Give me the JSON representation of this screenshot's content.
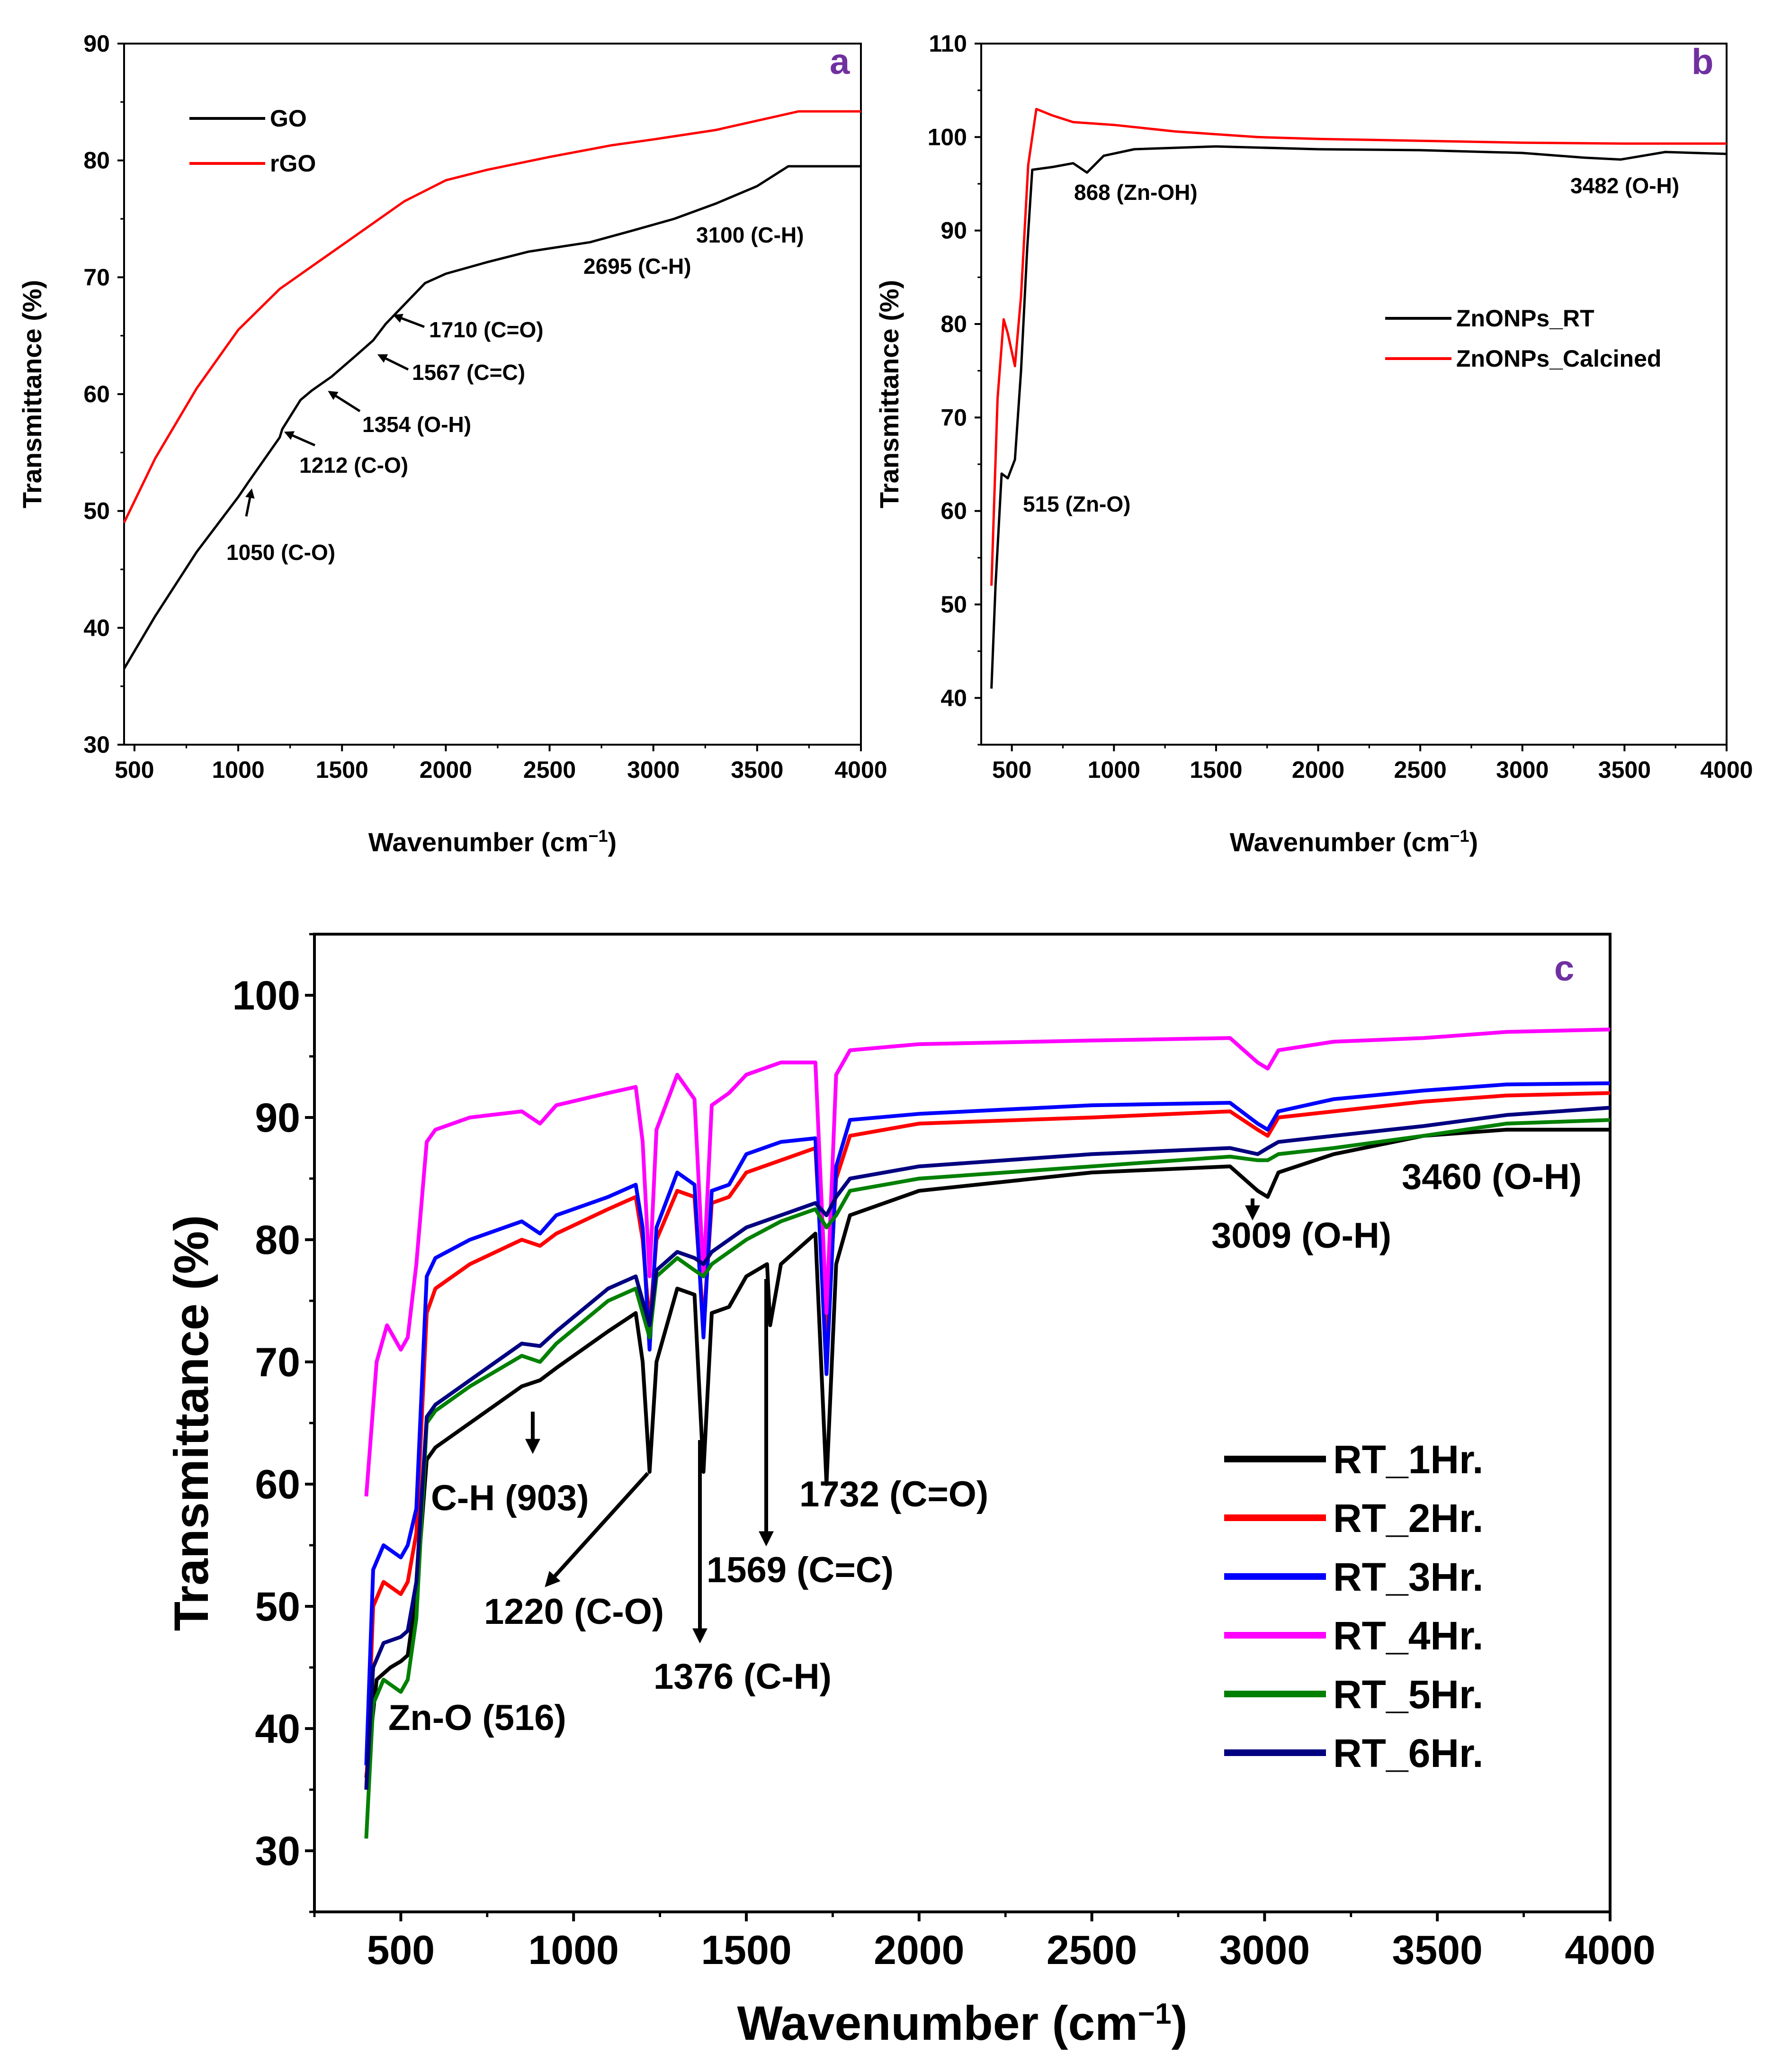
{
  "chart_data": [
    {
      "panel": "a",
      "type": "line",
      "xlabel": "Wavenumber (cm⁻¹)",
      "ylabel": "Transmittance (%)",
      "xlim": [
        450,
        4000
      ],
      "ylim": [
        30,
        90
      ],
      "xticks": [
        500,
        1000,
        1500,
        2000,
        2500,
        3000,
        3500,
        4000
      ],
      "yticks": [
        30,
        40,
        50,
        60,
        70,
        80,
        90
      ],
      "legend": "top-left",
      "series": [
        {
          "name": "GO",
          "color": "#000000",
          "x": [
            450,
            600,
            800,
            1000,
            1050,
            1200,
            1212,
            1300,
            1354,
            1450,
            1567,
            1650,
            1710,
            1900,
            2000,
            2200,
            2400,
            2695,
            2900,
            3100,
            3300,
            3500,
            3650,
            3700,
            4000
          ],
          "y": [
            36.5,
            41,
            46.5,
            51.2,
            52.5,
            56.3,
            57,
            59.5,
            60.3,
            61.5,
            63.3,
            64.6,
            66,
            69.5,
            70.3,
            71.3,
            72.2,
            73,
            74,
            75,
            76.3,
            77.8,
            79.5,
            79.5,
            79.5
          ]
        },
        {
          "name": "rGO",
          "color": "#ff0000",
          "x": [
            450,
            600,
            800,
            1000,
            1200,
            1400,
            1600,
            1800,
            2000,
            2200,
            2500,
            2800,
            3000,
            3300,
            3600,
            3700,
            4000
          ],
          "y": [
            49,
            54.5,
            60.5,
            65.5,
            69,
            71.5,
            74,
            76.5,
            78.3,
            79.2,
            80.3,
            81.3,
            81.8,
            82.6,
            83.8,
            84.2,
            84.2
          ]
        }
      ],
      "annotations": [
        {
          "text": "1050 (C-O)",
          "x": 1050,
          "y": 52.3
        },
        {
          "text": "1212 (C-O)",
          "x": 1212,
          "y": 56.8
        },
        {
          "text": "1354 (O-H)",
          "x": 1354,
          "y": 60.2
        },
        {
          "text": "1567 (C=C)",
          "x": 1567,
          "y": 63.2
        },
        {
          "text": "1710 (C=O)",
          "x": 1710,
          "y": 65.8
        },
        {
          "text": "2695 (C-H)",
          "x": 2695,
          "y": 73
        },
        {
          "text": "3100 (C-H)",
          "x": 3100,
          "y": 75
        }
      ],
      "panel_label": "a"
    },
    {
      "panel": "b",
      "type": "line",
      "xlabel": "Wavenumber (cm⁻¹)",
      "ylabel": "Transmittance (%)",
      "xlim": [
        350,
        4000
      ],
      "ylim": [
        35,
        110
      ],
      "xticks": [
        500,
        1000,
        1500,
        2000,
        2500,
        3000,
        3500,
        4000
      ],
      "yticks": [
        40,
        50,
        60,
        70,
        80,
        90,
        100,
        110
      ],
      "legend": "middle-right",
      "series": [
        {
          "name": "ZnONPs_RT",
          "color": "#000000",
          "x": [
            400,
            420,
            450,
            480,
            515,
            545,
            575,
            600,
            700,
            800,
            868,
            950,
            1100,
            1500,
            2000,
            2500,
            3000,
            3300,
            3482,
            3700,
            4000
          ],
          "y": [
            41,
            52,
            64,
            63.5,
            65.5,
            75,
            88,
            96.5,
            96.8,
            97.2,
            96.2,
            98,
            98.7,
            99,
            98.7,
            98.6,
            98.3,
            97.8,
            97.6,
            98.4,
            98.2
          ]
        },
        {
          "name": "ZnONPs_Calcined",
          "color": "#ff0000",
          "x": [
            400,
            430,
            460,
            480,
            515,
            545,
            580,
            620,
            700,
            800,
            1000,
            1300,
            1700,
            2000,
            2500,
            3000,
            3500,
            4000
          ],
          "y": [
            52,
            72,
            80.5,
            79,
            75.5,
            83,
            97,
            103,
            102.3,
            101.6,
            101.3,
            100.6,
            100,
            99.8,
            99.6,
            99.4,
            99.3,
            99.3
          ]
        }
      ],
      "annotations": [
        {
          "text": "515 (Zn-O)",
          "x": 515,
          "y": 64
        },
        {
          "text": "868 (Zn-OH)",
          "x": 868,
          "y": 96
        },
        {
          "text": "3482 (O-H)",
          "x": 3482,
          "y": 97.5
        }
      ],
      "panel_label": "b"
    },
    {
      "panel": "c",
      "type": "line",
      "xlabel": "Wavenumber (cm⁻¹)",
      "ylabel": "Transmittance (%)",
      "xlim": [
        250,
        4000
      ],
      "ylim": [
        25,
        105
      ],
      "xticks": [
        500,
        1000,
        1500,
        2000,
        2500,
        3000,
        3500,
        4000
      ],
      "yticks": [
        30,
        40,
        50,
        60,
        70,
        80,
        90,
        100
      ],
      "legend": "bottom-right",
      "series": [
        {
          "name": "RT_1Hr.",
          "color": "#000000",
          "x": [
            400,
            430,
            470,
            500,
            520,
            545,
            575,
            600,
            700,
            850,
            903,
            950,
            1100,
            1180,
            1200,
            1220,
            1240,
            1300,
            1350,
            1376,
            1400,
            1450,
            1500,
            1560,
            1569,
            1600,
            1700,
            1732,
            1760,
            1800,
            2000,
            2500,
            2900,
            2980,
            3009,
            3040,
            3200,
            3460,
            3700,
            4000
          ],
          "y": [
            36,
            44,
            45,
            45.5,
            46,
            51,
            62,
            63,
            65,
            68,
            68.5,
            69.5,
            72.5,
            74,
            70,
            61,
            70,
            76,
            75.5,
            61,
            74,
            74.5,
            77,
            78,
            73,
            78,
            80.5,
            60,
            78,
            82,
            84,
            85.5,
            86,
            84,
            83.5,
            85.5,
            87,
            88.5,
            89,
            89
          ]
        },
        {
          "name": "RT_2Hr.",
          "color": "#ff0000",
          "x": [
            400,
            420,
            450,
            500,
            520,
            545,
            575,
            600,
            700,
            850,
            903,
            950,
            1100,
            1180,
            1200,
            1220,
            1240,
            1300,
            1350,
            1376,
            1400,
            1450,
            1500,
            1600,
            1700,
            1732,
            1760,
            1800,
            2000,
            2500,
            2900,
            2980,
            3009,
            3040,
            3200,
            3460,
            3700,
            4000
          ],
          "y": [
            35,
            50,
            52,
            51,
            52,
            56,
            74,
            76,
            78,
            80,
            79.5,
            80.5,
            82.5,
            83.5,
            80,
            73,
            80,
            84,
            83.5,
            73,
            83,
            83.5,
            85.5,
            86.5,
            87.5,
            71,
            85,
            88.5,
            89.5,
            90,
            90.5,
            89,
            88.5,
            90,
            90.5,
            91.3,
            91.8,
            92
          ]
        },
        {
          "name": "RT_3Hr.",
          "color": "#0000ff",
          "x": [
            400,
            420,
            450,
            500,
            520,
            545,
            575,
            600,
            700,
            850,
            903,
            950,
            1100,
            1180,
            1200,
            1220,
            1240,
            1300,
            1350,
            1376,
            1400,
            1450,
            1500,
            1600,
            1700,
            1732,
            1760,
            1800,
            2000,
            2500,
            2900,
            2980,
            3009,
            3040,
            3200,
            3460,
            3700,
            4000
          ],
          "y": [
            37,
            53,
            55,
            54,
            55,
            58,
            77,
            78.5,
            80,
            81.5,
            80.5,
            82,
            83.5,
            84.5,
            81,
            71,
            81,
            85.5,
            84.5,
            72,
            84,
            84.5,
            87,
            88,
            88.3,
            69,
            86,
            89.8,
            90.3,
            91,
            91.2,
            89.5,
            89,
            90.5,
            91.5,
            92.2,
            92.7,
            92.8
          ]
        },
        {
          "name": "RT_4Hr.",
          "color": "#ff00ff",
          "x": [
            400,
            430,
            460,
            500,
            520,
            545,
            575,
            600,
            700,
            850,
            903,
            950,
            1100,
            1180,
            1200,
            1220,
            1240,
            1300,
            1350,
            1376,
            1400,
            1450,
            1500,
            1600,
            1700,
            1732,
            1760,
            1800,
            2000,
            2500,
            2900,
            2980,
            3009,
            3040,
            3200,
            3460,
            3700,
            4000
          ],
          "y": [
            59,
            70,
            73,
            71,
            72,
            78,
            88,
            89,
            90,
            90.5,
            89.5,
            91,
            92,
            92.5,
            88,
            77,
            89,
            93.5,
            91.5,
            77,
            91,
            92,
            93.5,
            94.5,
            94.5,
            74,
            93.5,
            95.5,
            96,
            96.3,
            96.5,
            94.5,
            94,
            95.5,
            96.2,
            96.5,
            97,
            97.2
          ]
        },
        {
          "name": "RT_5Hr.",
          "color": "#008000",
          "x": [
            400,
            420,
            450,
            500,
            520,
            545,
            575,
            600,
            700,
            850,
            903,
            950,
            1100,
            1180,
            1200,
            1220,
            1240,
            1300,
            1350,
            1376,
            1400,
            1450,
            1500,
            1600,
            1700,
            1732,
            1760,
            1800,
            2000,
            2500,
            2900,
            2980,
            3009,
            3040,
            3200,
            3460,
            3700,
            4000
          ],
          "y": [
            31,
            42,
            44,
            43,
            44,
            49,
            65,
            66,
            68,
            70.5,
            70,
            71.5,
            75,
            76,
            74,
            72,
            77,
            78.5,
            77.5,
            77,
            78,
            79,
            80,
            81.5,
            82.5,
            81,
            82,
            84,
            85,
            86,
            86.8,
            86.5,
            86.5,
            87,
            87.5,
            88.5,
            89.5,
            89.8
          ]
        },
        {
          "name": "RT_6Hr.",
          "color": "#000080",
          "x": [
            400,
            420,
            450,
            500,
            520,
            545,
            575,
            600,
            700,
            850,
            903,
            950,
            1100,
            1180,
            1200,
            1220,
            1240,
            1300,
            1350,
            1376,
            1400,
            1450,
            1500,
            1600,
            1700,
            1732,
            1760,
            1800,
            2000,
            2500,
            2900,
            2980,
            3009,
            3040,
            3200,
            3460,
            3700,
            4000
          ],
          "y": [
            35,
            45,
            47,
            47.5,
            48,
            52,
            65.5,
            66.5,
            68.5,
            71.5,
            71.3,
            72.5,
            76,
            77,
            75,
            73,
            77.5,
            79,
            78.5,
            78,
            79,
            80,
            81,
            82,
            83,
            82,
            83.5,
            85,
            86,
            87,
            87.5,
            87,
            87.5,
            88,
            88.5,
            89.3,
            90.2,
            90.8
          ]
        }
      ],
      "annotations": [
        {
          "text": "Zn-O (516)",
          "x": 516,
          "y": 44
        },
        {
          "text": "C-H (903)",
          "x": 903,
          "y": 68.5
        },
        {
          "text": "1220 (C-O)",
          "x": 1220,
          "y": 61
        },
        {
          "text": "1376 (C-H)",
          "x": 1376,
          "y": 61
        },
        {
          "text": "1569 (C=C)",
          "x": 1569,
          "y": 73
        },
        {
          "text": "1732 (C=O)",
          "x": 1732,
          "y": 60
        },
        {
          "text": "3009 (O-H)",
          "x": 3009,
          "y": 83.5
        },
        {
          "text": "3460 (O-H)",
          "x": 3460,
          "y": 88.5
        }
      ],
      "panel_label": "c"
    }
  ]
}
